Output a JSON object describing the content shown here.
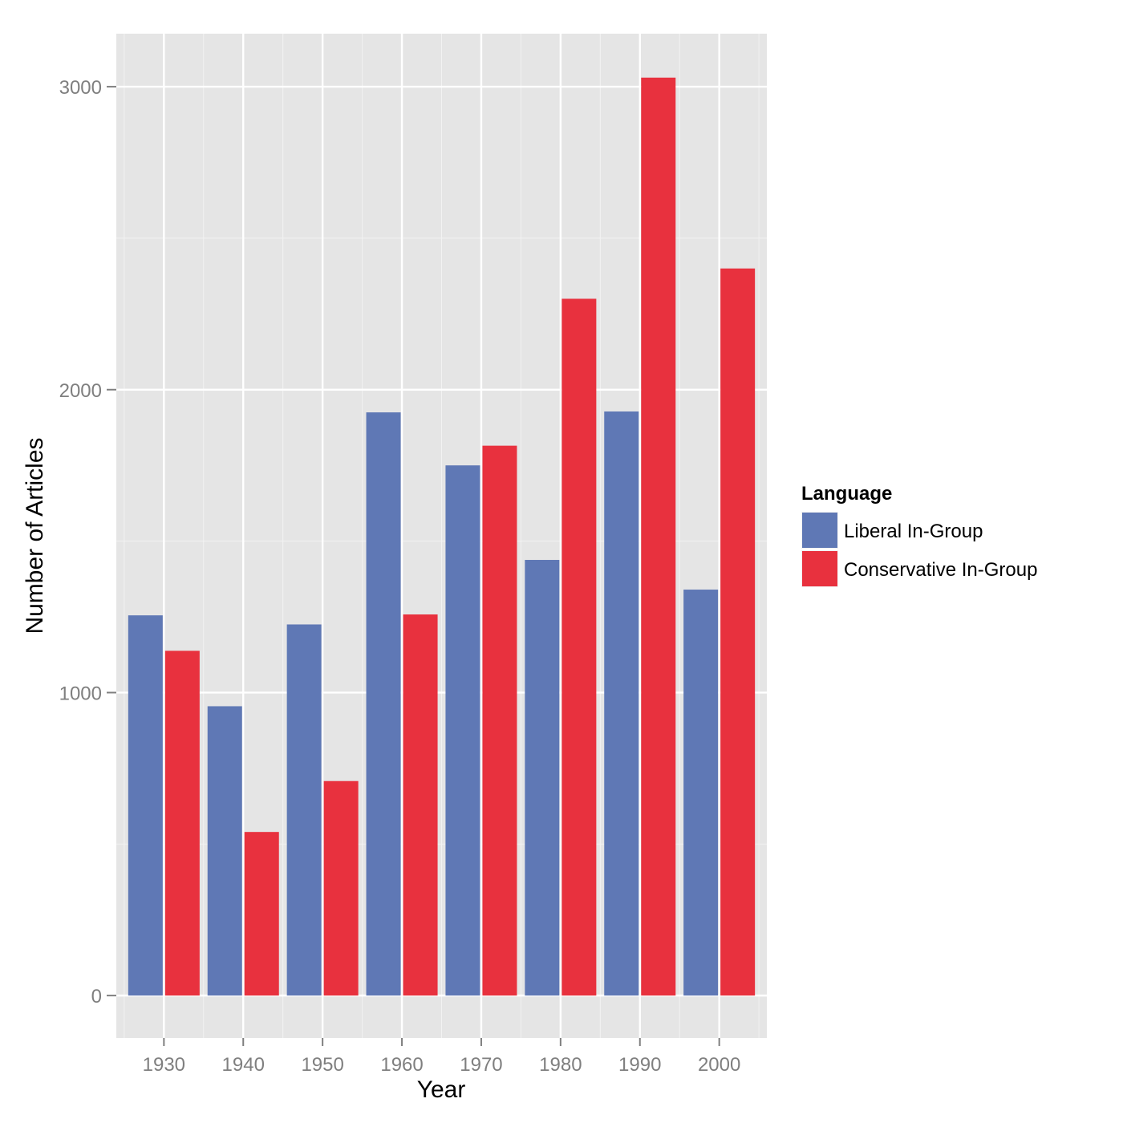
{
  "chart_data": {
    "type": "bar",
    "title": "",
    "xlabel": "Year",
    "ylabel": "Number of Articles",
    "categories": [
      "1930",
      "1940",
      "1950",
      "1960",
      "1970",
      "1980",
      "1990",
      "2000"
    ],
    "series": [
      {
        "name": "Liberal In-Group",
        "color": "#5f78b5",
        "values": [
          1255,
          955,
          1225,
          1925,
          1750,
          1438,
          1928,
          1340
        ]
      },
      {
        "name": "Conservative In-Group",
        "color": "#e8313e",
        "values": [
          1138,
          540,
          708,
          1258,
          1815,
          2300,
          3030,
          2400
        ]
      }
    ],
    "ylim": [
      -140,
      3175
    ],
    "yticks": [
      0,
      1000,
      2000,
      3000
    ],
    "ytick_labels": [
      "0",
      "1000",
      "2000",
      "3000"
    ],
    "grid": true,
    "panel_background": "#e5e5e5",
    "legend": {
      "title": "Language",
      "position": "right"
    }
  }
}
